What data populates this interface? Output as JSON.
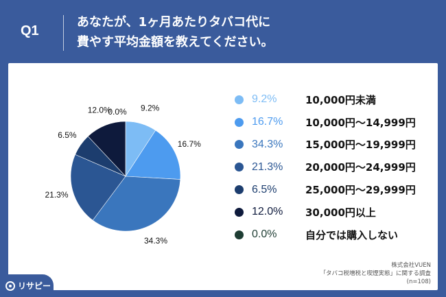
{
  "header": {
    "q_label": "Q1",
    "title_line1": "あなたが、1ヶ月あたりタバコ代に",
    "title_line2": "費やす平均金額を教えてください。"
  },
  "chart_data": {
    "type": "pie",
    "categories": [
      "10,000円未満",
      "10,000円〜14,999円",
      "15,000円〜19,999円",
      "20,000円〜24,999円",
      "25,000円〜29,999円",
      "30,000円以上",
      "自分では購入しない"
    ],
    "values": [
      9.2,
      16.7,
      34.3,
      21.3,
      6.5,
      12.0,
      0.0
    ],
    "value_labels": [
      "9.2%",
      "16.7%",
      "34.3%",
      "21.3%",
      "6.5%",
      "12.0%",
      "0.0%"
    ],
    "colors": [
      "#7dbcf5",
      "#4d9bef",
      "#3a76bd",
      "#2b5693",
      "#1c3d6e",
      "#0e1a3c",
      "#1e3d33"
    ],
    "start_angle_deg": 0,
    "direction": "clockwise",
    "legend_position": "right"
  },
  "source": {
    "line1": "株式会社VUEN",
    "line2": "「タバコ税増税と喫煙実態」に関する調査",
    "line3": "(n=108)"
  },
  "logo": {
    "text": "リサピー"
  }
}
